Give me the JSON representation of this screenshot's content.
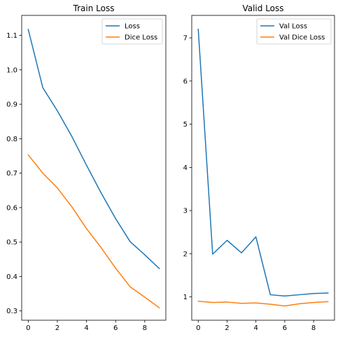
{
  "chart_data": [
    {
      "type": "line",
      "title": "Train Loss",
      "xlabel": "",
      "ylabel": "",
      "x": [
        0,
        1,
        2,
        3,
        4,
        5,
        6,
        7,
        8,
        9
      ],
      "xlim": [
        -0.45,
        9.45
      ],
      "ylim": [
        0.273,
        1.158
      ],
      "xticks": [
        0,
        2,
        4,
        6,
        8
      ],
      "xtick_labels": [
        "0",
        "2",
        "4",
        "6",
        "8"
      ],
      "yticks": [
        0.3,
        0.4,
        0.5,
        0.6,
        0.7,
        0.8,
        0.9,
        1.0,
        1.1
      ],
      "ytick_labels": [
        "0.3",
        "0.4",
        "0.5",
        "0.6",
        "0.7",
        "0.8",
        "0.9",
        "1.0",
        "1.1"
      ],
      "grid": false,
      "legend_position": "top-right",
      "series": [
        {
          "name": "Loss",
          "color": "#1f77b4",
          "values": [
            1.117,
            0.948,
            0.881,
            0.806,
            0.723,
            0.643,
            0.568,
            0.501,
            0.463,
            0.423
          ]
        },
        {
          "name": "Dice Loss",
          "color": "#ff7f0e",
          "values": [
            0.753,
            0.7,
            0.657,
            0.602,
            0.539,
            0.484,
            0.424,
            0.37,
            0.34,
            0.309
          ]
        }
      ]
    },
    {
      "type": "line",
      "title": "Valid Loss",
      "xlabel": "",
      "ylabel": "",
      "x": [
        0,
        1,
        2,
        3,
        4,
        5,
        6,
        7,
        8,
        9
      ],
      "xlim": [
        -0.45,
        9.45
      ],
      "ylim": [
        0.46,
        7.52
      ],
      "xticks": [
        0,
        2,
        4,
        6,
        8
      ],
      "xtick_labels": [
        "0",
        "2",
        "4",
        "6",
        "8"
      ],
      "yticks": [
        1,
        2,
        3,
        4,
        5,
        6,
        7
      ],
      "ytick_labels": [
        "1",
        "2",
        "3",
        "4",
        "5",
        "6",
        "7"
      ],
      "grid": false,
      "legend_position": "top-right",
      "series": [
        {
          "name": "Val Loss",
          "color": "#1f77b4",
          "values": [
            7.2,
            1.99,
            2.31,
            2.02,
            2.39,
            1.05,
            1.02,
            1.05,
            1.08,
            1.09
          ]
        },
        {
          "name": "Val Dice Loss",
          "color": "#ff7f0e",
          "values": [
            0.9,
            0.87,
            0.88,
            0.85,
            0.86,
            0.83,
            0.79,
            0.84,
            0.87,
            0.89
          ]
        }
      ]
    }
  ]
}
